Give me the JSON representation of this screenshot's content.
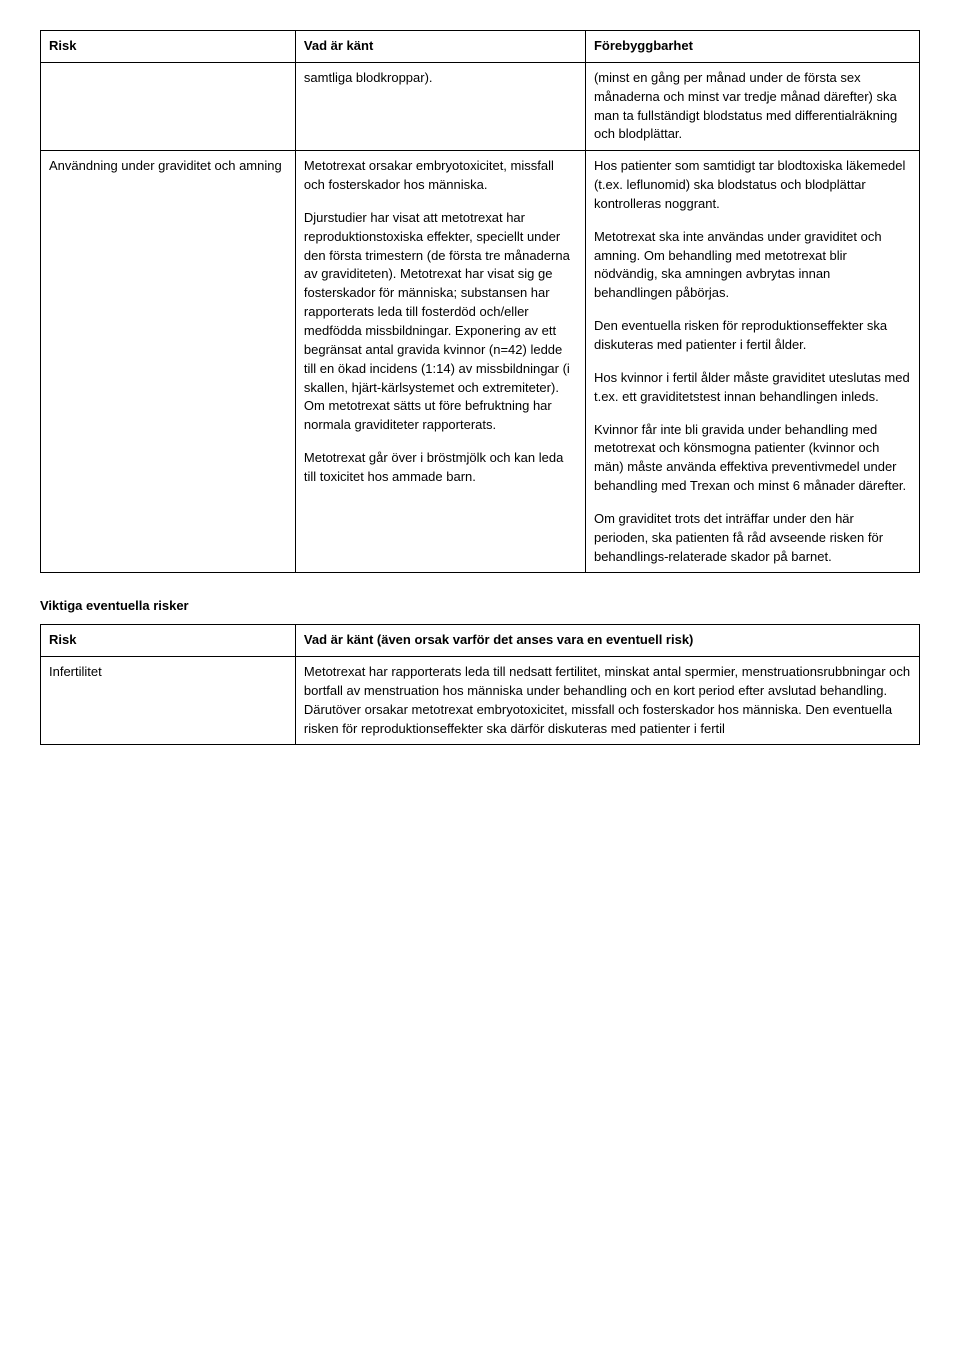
{
  "table1": {
    "headers": [
      "Risk",
      "Vad är känt",
      "Förebyggbarhet"
    ],
    "row1": {
      "col2": "samtliga blodkroppar).",
      "col3": "(minst en gång per månad under de första sex månaderna och minst var tredje månad därefter) ska man ta fullständigt blodstatus med differentialräkning och blodplättar."
    },
    "row2": {
      "col1": "Användning under graviditet och amning",
      "col2": {
        "p1": "Metotrexat orsakar embryotoxicitet, missfall och fosterskador hos människa.",
        "p2": "Djurstudier har visat att metotrexat har reproduktionstoxiska effekter, speciellt under den första trimestern (de första tre månaderna av graviditeten). Metotrexat har visat sig ge fosterskador för människa; substansen har rapporterats leda till fosterdöd och/eller medfödda missbildningar. Exponering av ett begränsat antal gravida kvinnor (n=42) ledde till en ökad incidens (1:14) av missbildningar (i skallen, hjärt-kärlsystemet och extremiteter). Om metotrexat sätts ut före befruktning har normala graviditeter rapporterats.",
        "p3": "Metotrexat går över i bröstmjölk och kan leda till toxicitet hos ammade barn."
      },
      "col3": {
        "p1": "Hos patienter som samtidigt tar blodtoxiska läkemedel (t.ex. leflunomid) ska blodstatus och blodplättar kontrolleras noggrant.",
        "p2": "Metotrexat ska inte användas under graviditet och amning. Om behandling med metotrexat blir nödvändig, ska amningen avbrytas innan behandlingen påbörjas.",
        "p3": "Den eventuella risken för reproduktionseffekter ska diskuteras med patienter i fertil ålder.",
        "p4": "Hos kvinnor i fertil ålder måste graviditet uteslutas med t.ex. ett graviditetstest innan behandlingen inleds.",
        "p5": "Kvinnor får inte bli gravida under behandling med metotrexat och könsmogna patienter (kvinnor och män) måste använda effektiva preventivmedel under behandling med Trexan och minst 6 månader därefter.",
        "p6": "Om graviditet trots det inträffar under den här perioden, ska patienten få råd avseende risken för behandlings-relaterade skador på barnet."
      }
    }
  },
  "section_heading": "Viktiga eventuella risker",
  "table2": {
    "headers": [
      "Risk",
      "Vad är känt (även orsak varför det anses vara en eventuell risk)"
    ],
    "row1": {
      "col1": "Infertilitet",
      "col2": "Metotrexat har rapporterats leda till nedsatt fertilitet, minskat antal spermier, menstruationsrubbningar och bortfall av menstruation hos människa under behandling och en kort period efter avslutad behandling. Därutöver orsakar metotrexat embryotoxicitet, missfall och fosterskador hos människa. Den eventuella risken för reproduktionseffekter ska därför diskuteras med patienter i fertil"
    }
  }
}
